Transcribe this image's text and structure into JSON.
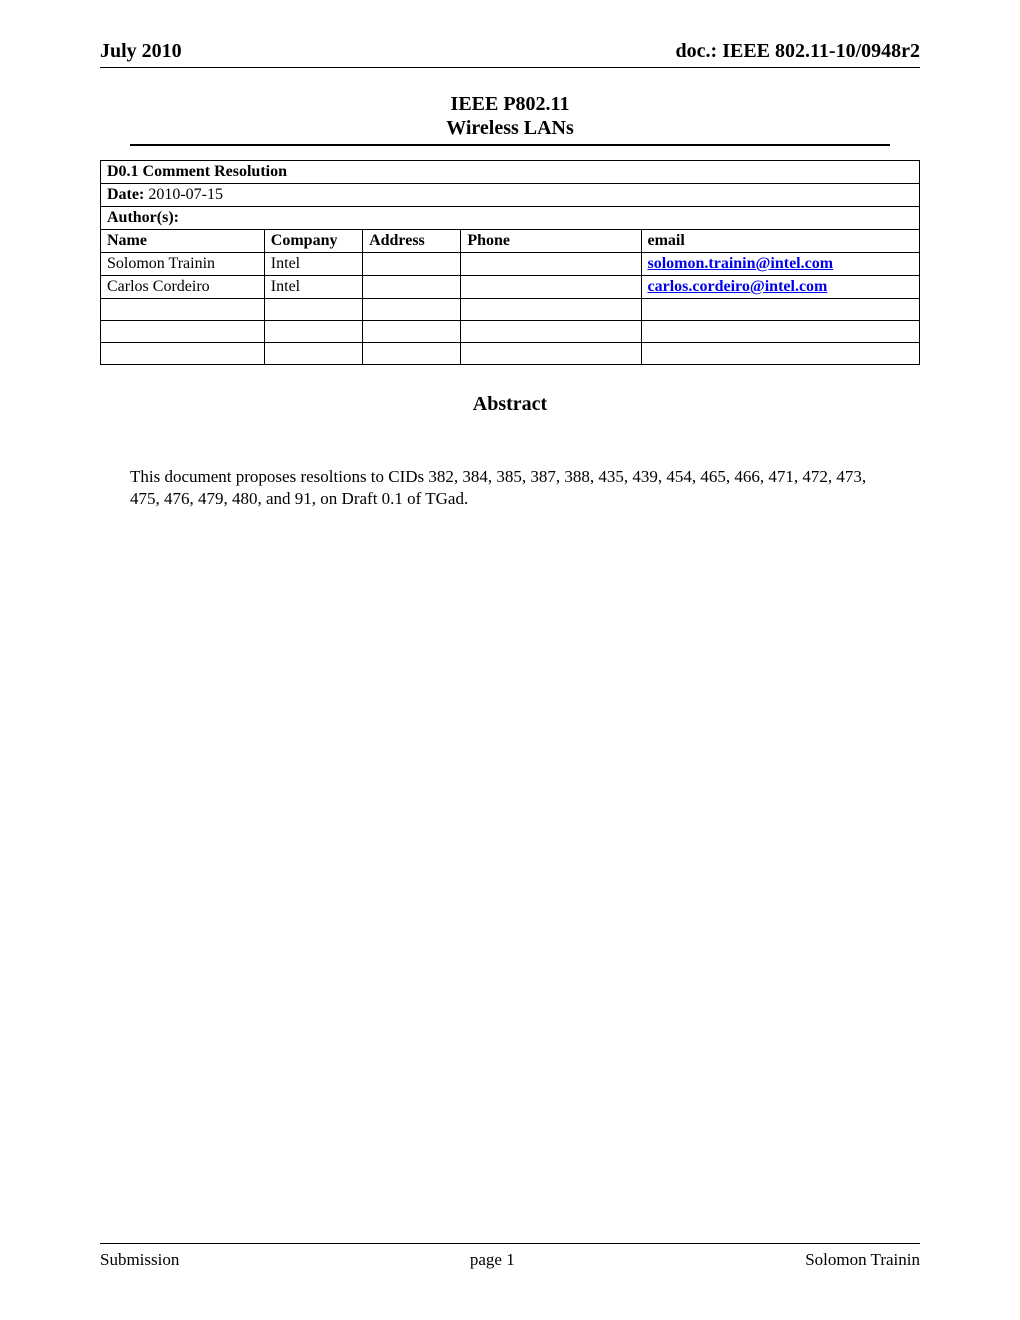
{
  "header": {
    "left": "July 2010",
    "right": "doc.: IEEE 802.11-10/0948r2"
  },
  "title": {
    "line1": "IEEE P802.11",
    "line2": "Wireless LANs"
  },
  "doc_title": "D0.1 Comment Resolution",
  "date": {
    "label": "Date:",
    "value": "  2010-07-15"
  },
  "authors_label": "Author(s):",
  "columns": {
    "name": "Name",
    "company": "Company",
    "address": "Address",
    "phone": "Phone",
    "email": "email"
  },
  "authors": [
    {
      "name": "Solomon Trainin",
      "company": "Intel",
      "address": "",
      "phone": "",
      "email": "solomon.trainin@intel.com"
    },
    {
      "name": "Carlos Cordeiro",
      "company": "Intel",
      "address": "",
      "phone": "",
      "email": "carlos.cordeiro@intel.com"
    }
  ],
  "abstract": {
    "heading": "Abstract",
    "body": "This document proposes resoltions to CIDs 382, 384, 385, 387, 388, 435, 439, 454, 465, 466, 471, 472, 473, 475, 476, 479, 480, and 91, on Draft 0.1 of TGad."
  },
  "footer": {
    "left": "Submission",
    "center": "page 1",
    "right": "Solomon Trainin"
  }
}
